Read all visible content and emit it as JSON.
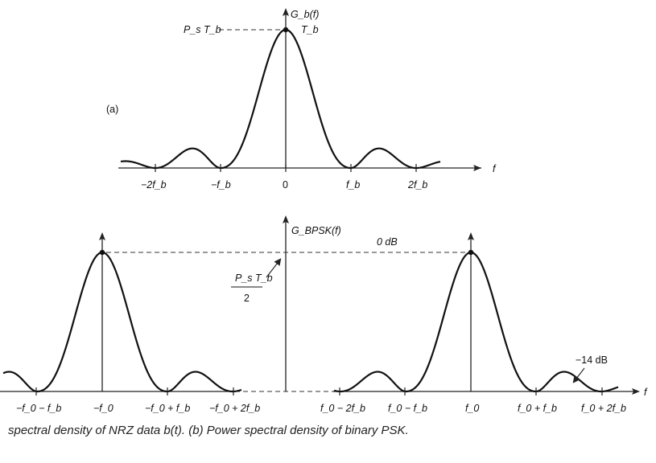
{
  "panel_a": {
    "label": "(a)",
    "y_axis_label": "G_b(f)",
    "peak_label_left": "P_s T_b",
    "peak_label_right": "T_b",
    "x_axis_label": "f",
    "ticks": [
      {
        "name": "-2fb",
        "text": "−2f_b"
      },
      {
        "name": "-fb",
        "text": "−f_b"
      },
      {
        "name": "0",
        "text": "0"
      },
      {
        "name": "fb",
        "text": "f_b"
      },
      {
        "name": "2fb",
        "text": "2f_b"
      }
    ]
  },
  "panel_b": {
    "y_axis_label": "G_BPSK(f)",
    "peak_label": "0 dB",
    "level_label_num": "P_s T_b",
    "level_label_den": "2",
    "sidelobe_label": "−14 dB",
    "x_axis_label": "f",
    "ticks_left": [
      "−f_0 − f_b",
      "−f_0",
      "−f_0 + f_b",
      "−f_0 + 2f_b"
    ],
    "ticks_right": [
      "f_0 − 2f_b",
      "f_0 − f_b",
      "f_0",
      "f_0 + f_b",
      "f_0 + 2f_b"
    ]
  },
  "caption": "spectral density of NRZ data b(t). (b) Power spectral density of binary PSK."
}
